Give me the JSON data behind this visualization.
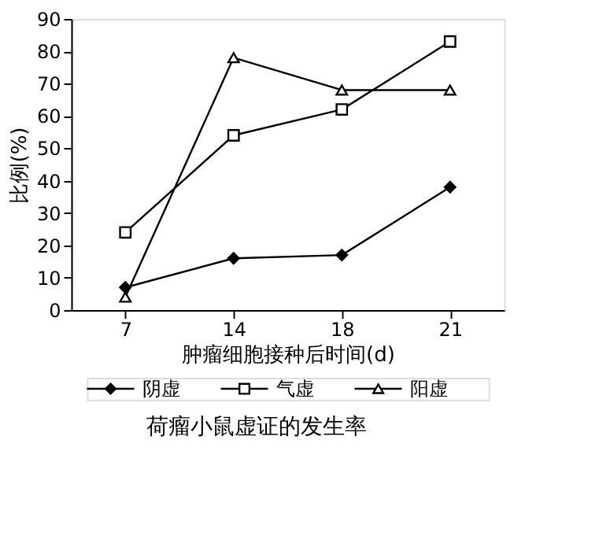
{
  "chart_data": {
    "type": "line",
    "title": "荷瘤小鼠虚证的发生率",
    "xlabel": "肿瘤细胞接种后时间(d)",
    "ylabel": "比例(%)",
    "categories": [
      "7",
      "14",
      "18",
      "21"
    ],
    "series": [
      {
        "name": "阴虚",
        "color": "#000000",
        "marker": "diamond",
        "values": [
          7,
          16,
          17,
          38
        ]
      },
      {
        "name": "气虚",
        "color": "#000000",
        "marker": "square",
        "values": [
          24,
          54,
          62,
          83
        ]
      },
      {
        "name": "阳虚",
        "color": "#000000",
        "marker": "triangle",
        "values": [
          4,
          78,
          68,
          68
        ]
      }
    ],
    "ylim": [
      0,
      90
    ],
    "yticks": [
      0,
      10,
      20,
      30,
      40,
      50,
      60,
      70,
      80,
      90
    ],
    "grid": false,
    "legend": "bottom",
    "line_style": "solid"
  }
}
